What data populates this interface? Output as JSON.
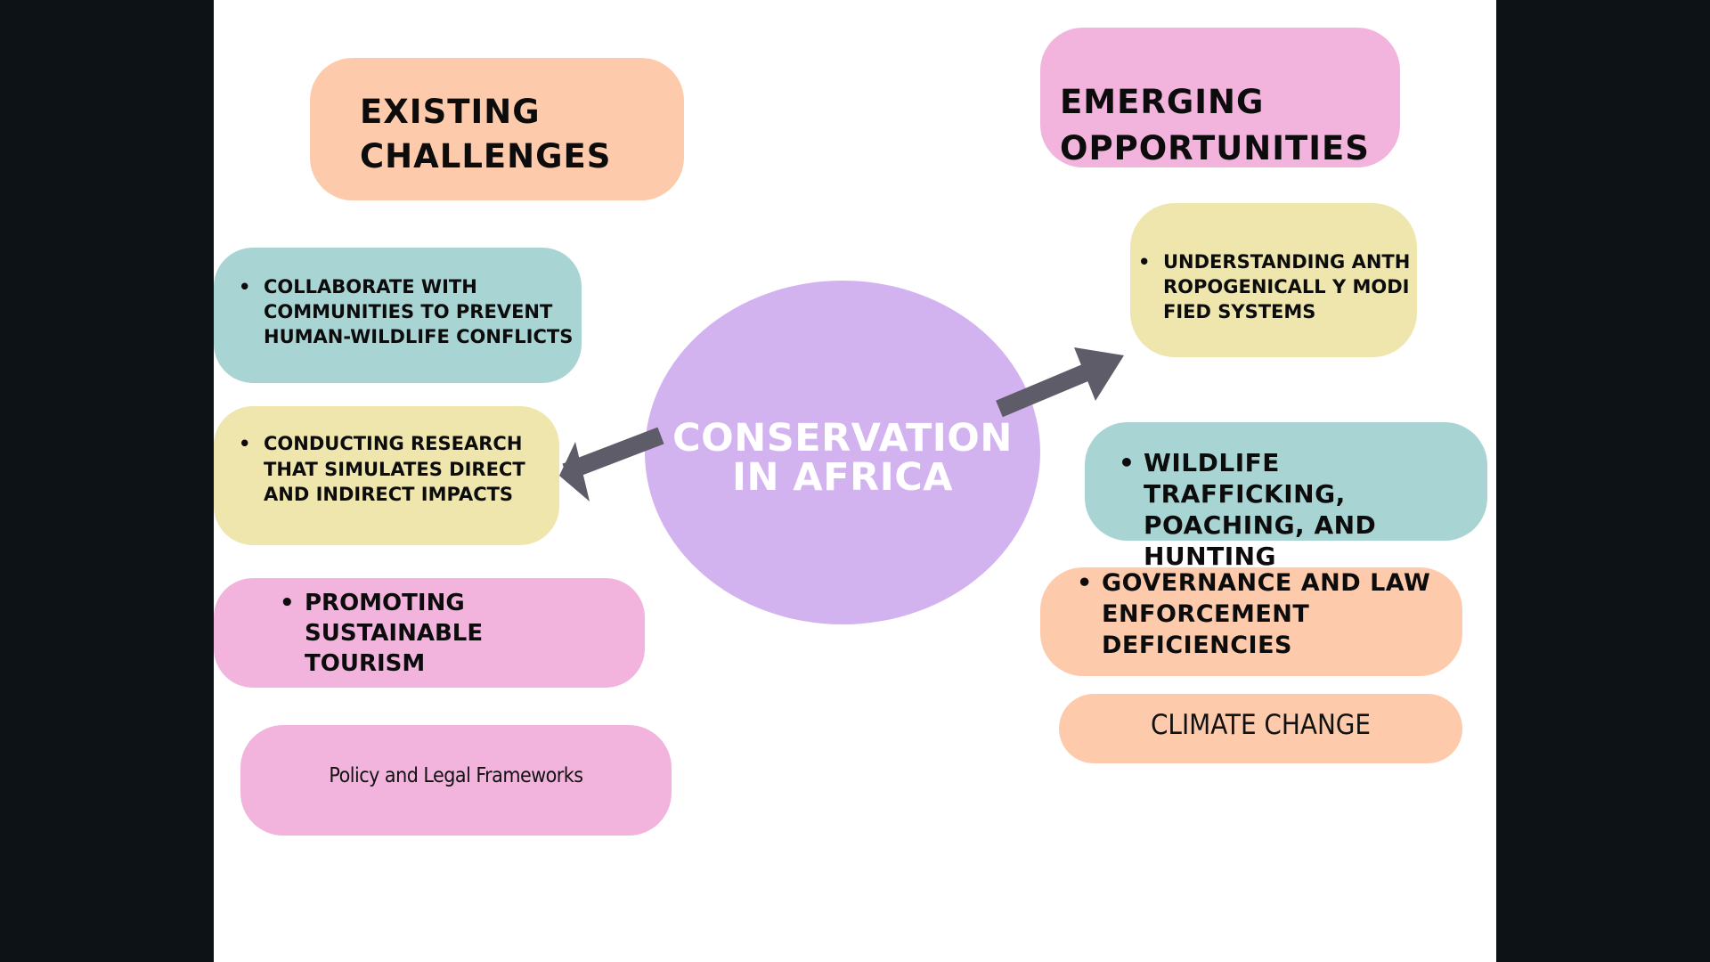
{
  "center": {
    "label_line1": "CONSERVATION",
    "label_line2": "IN AFRICA"
  },
  "left_heading": {
    "line1": "EXISTING",
    "line2": "CHALLENGES"
  },
  "right_heading": {
    "line1": "EMERGING",
    "line2": "OPPORTUNITIES"
  },
  "left_items": {
    "collaborate": "COLLABORATE WITH COMMUNITIES TO PREVENT HUMAN-WILDLIFE CONFLICTS",
    "research": "CONDUCTING RESEARCH THAT SIMULATES DIRECT AND INDIRECT IMPACTS",
    "tourism": "PROMOTING SUSTAINABLE TOURISM",
    "policy": "Policy and Legal Frameworks"
  },
  "right_items": {
    "understanding": "UNDERSTANDING ANTHROPOGENICALL Y MODIFIED SYSTEMS",
    "trafficking": "WILDLIFE TRAFFICKING, POACHING, AND HUNTING",
    "governance": "GOVERNANCE AND LAW ENFORCEMENT DEFICIENCIES",
    "climate": "CLIMATE CHANGE"
  },
  "colors": {
    "background": "#0d1217",
    "slide": "#ffffff",
    "peach": "#fdcbab",
    "pink": "#f2b4dc",
    "teal": "#a9d4d4",
    "yellow": "#efe6ad",
    "center": "#d2b3ef",
    "arrow": "#5e5c69"
  }
}
